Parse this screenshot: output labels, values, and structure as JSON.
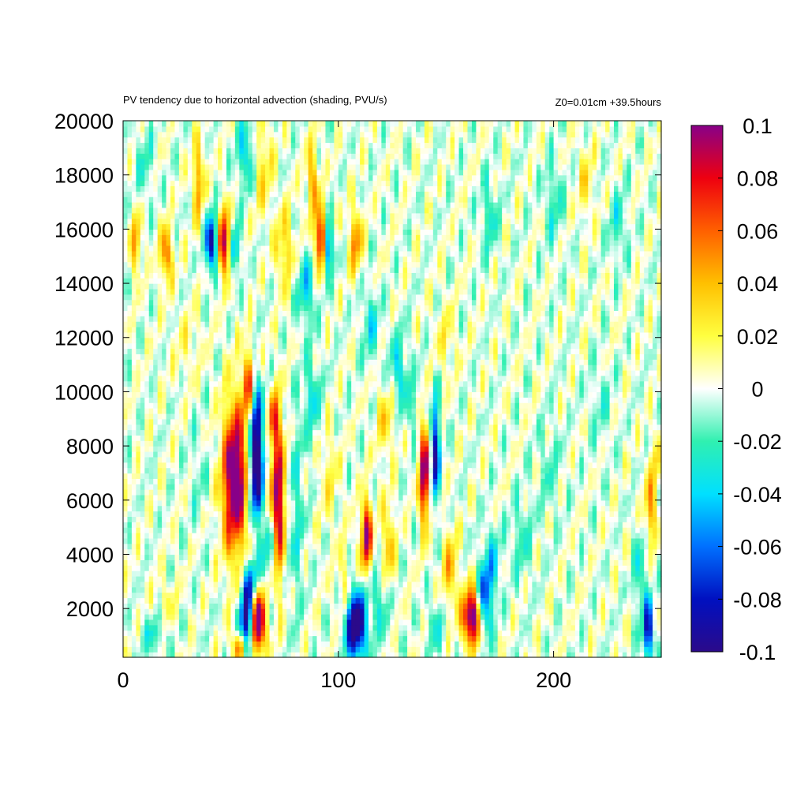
{
  "chart_data": {
    "type": "heatmap",
    "title": "PV tendency due to horizontal advection (shading, PVU/s)",
    "subtitle": "Z0=0.01cm   +39.5hours",
    "xlabel": "",
    "ylabel": "",
    "xlim": [
      0,
      250
    ],
    "ylim": [
      200,
      20000
    ],
    "x_ticks": [
      "0",
      "100",
      "200"
    ],
    "x_tick_values": [
      0,
      100,
      200
    ],
    "y_ticks": [
      "2000",
      "4000",
      "6000",
      "8000",
      "10000",
      "12000",
      "14000",
      "16000",
      "18000",
      "20000"
    ],
    "y_tick_values": [
      2000,
      4000,
      6000,
      8000,
      10000,
      12000,
      14000,
      16000,
      18000,
      20000
    ],
    "colorbar": {
      "range": [
        -0.1,
        0.1
      ],
      "ticks": [
        "0.1",
        "0.08",
        "0.06",
        "0.04",
        "0.02",
        "0",
        "-0.02",
        "-0.04",
        "-0.06",
        "-0.08",
        "-0.1"
      ],
      "tick_values": [
        0.1,
        0.08,
        0.06,
        0.04,
        0.02,
        0,
        -0.02,
        -0.04,
        -0.06,
        -0.08,
        -0.1
      ],
      "colors": [
        "#2b0a8a",
        "#0010c0",
        "#0070ff",
        "#00e0ff",
        "#30f0b0",
        "#ffffff",
        "#ffff40",
        "#ffc000",
        "#ff6000",
        "#ee0010",
        "#880088"
      ]
    },
    "features": [
      {
        "x": 52,
        "y": 6800,
        "sx": 4,
        "sy": 1900,
        "v": 0.12
      },
      {
        "x": 62,
        "y": 7200,
        "sx": 2.2,
        "sy": 1300,
        "v": -0.12
      },
      {
        "x": 58,
        "y": 10300,
        "sx": 1.6,
        "sy": 900,
        "v": 0.07
      },
      {
        "x": 62,
        "y": 9200,
        "sx": 2.5,
        "sy": 1000,
        "v": -0.04
      },
      {
        "x": 72,
        "y": 6000,
        "sx": 2.4,
        "sy": 2000,
        "v": 0.1
      },
      {
        "x": 70,
        "y": 9000,
        "sx": 1.8,
        "sy": 700,
        "v": 0.05
      },
      {
        "x": 68,
        "y": 4200,
        "sx": 2.5,
        "sy": 900,
        "v": -0.04
      },
      {
        "x": 63,
        "y": 1500,
        "sx": 2.2,
        "sy": 800,
        "v": 0.12
      },
      {
        "x": 57,
        "y": 1700,
        "sx": 2,
        "sy": 1000,
        "v": -0.1
      },
      {
        "x": 60,
        "y": 3100,
        "sx": 2,
        "sy": 600,
        "v": -0.05
      },
      {
        "x": 54,
        "y": 600,
        "sx": 2,
        "sy": 400,
        "v": 0.07
      },
      {
        "x": 80,
        "y": 5500,
        "sx": 3,
        "sy": 2500,
        "v": -0.025
      },
      {
        "x": 108,
        "y": 1400,
        "sx": 3.5,
        "sy": 900,
        "v": -0.12
      },
      {
        "x": 103,
        "y": 2700,
        "sx": 2.5,
        "sy": 1200,
        "v": 0.025
      },
      {
        "x": 113,
        "y": 4700,
        "sx": 1.8,
        "sy": 900,
        "v": 0.1
      },
      {
        "x": 123,
        "y": 4200,
        "sx": 2.2,
        "sy": 1200,
        "v": 0.04
      },
      {
        "x": 120,
        "y": 2300,
        "sx": 3,
        "sy": 1000,
        "v": -0.03
      },
      {
        "x": 140,
        "y": 7000,
        "sx": 1.6,
        "sy": 1300,
        "v": 0.11
      },
      {
        "x": 145,
        "y": 7800,
        "sx": 1.4,
        "sy": 1300,
        "v": -0.09
      },
      {
        "x": 135,
        "y": 9500,
        "sx": 2.5,
        "sy": 800,
        "v": -0.02
      },
      {
        "x": 162,
        "y": 1700,
        "sx": 3,
        "sy": 700,
        "v": 0.12
      },
      {
        "x": 168,
        "y": 2400,
        "sx": 2.5,
        "sy": 1000,
        "v": -0.07
      },
      {
        "x": 152,
        "y": 3500,
        "sx": 2.5,
        "sy": 1000,
        "v": 0.04
      },
      {
        "x": 172,
        "y": 3800,
        "sx": 2.5,
        "sy": 900,
        "v": -0.03
      },
      {
        "x": 145,
        "y": 1300,
        "sx": 3,
        "sy": 700,
        "v": -0.025
      },
      {
        "x": 245,
        "y": 5700,
        "sx": 2,
        "sy": 900,
        "v": 0.05
      },
      {
        "x": 244,
        "y": 1200,
        "sx": 1.6,
        "sy": 800,
        "v": -0.09
      },
      {
        "x": 240,
        "y": 3200,
        "sx": 2,
        "sy": 1200,
        "v": -0.03
      },
      {
        "x": 248,
        "y": 7500,
        "sx": 1.8,
        "sy": 800,
        "v": 0.025
      },
      {
        "x": 41,
        "y": 15500,
        "sx": 1.8,
        "sy": 700,
        "v": -0.1
      },
      {
        "x": 47,
        "y": 15500,
        "sx": 2.2,
        "sy": 800,
        "v": 0.09
      },
      {
        "x": 52,
        "y": 15300,
        "sx": 1.5,
        "sy": 600,
        "v": -0.06
      },
      {
        "x": 92,
        "y": 15600,
        "sx": 1.8,
        "sy": 800,
        "v": 0.1
      },
      {
        "x": 95,
        "y": 15300,
        "sx": 1.4,
        "sy": 700,
        "v": -0.09
      },
      {
        "x": 108,
        "y": 15600,
        "sx": 2,
        "sy": 800,
        "v": 0.055
      },
      {
        "x": 20,
        "y": 15100,
        "sx": 2,
        "sy": 700,
        "v": 0.06
      },
      {
        "x": 6,
        "y": 15500,
        "sx": 1.5,
        "sy": 800,
        "v": 0.05
      },
      {
        "x": 35,
        "y": 17800,
        "sx": 1.8,
        "sy": 1000,
        "v": 0.05
      },
      {
        "x": 88,
        "y": 17800,
        "sx": 2,
        "sy": 1000,
        "v": 0.045
      },
      {
        "x": 57,
        "y": 18800,
        "sx": 3,
        "sy": 900,
        "v": -0.04
      },
      {
        "x": 65,
        "y": 18300,
        "sx": 3,
        "sy": 1200,
        "v": 0.03
      },
      {
        "x": 75,
        "y": 15300,
        "sx": 3,
        "sy": 1000,
        "v": 0.035
      },
      {
        "x": 85,
        "y": 13800,
        "sx": 3,
        "sy": 900,
        "v": -0.04
      },
      {
        "x": 115,
        "y": 12500,
        "sx": 3,
        "sy": 900,
        "v": -0.03
      },
      {
        "x": 128,
        "y": 10800,
        "sx": 3,
        "sy": 1000,
        "v": -0.035
      },
      {
        "x": 88,
        "y": 9800,
        "sx": 3,
        "sy": 1100,
        "v": -0.03
      },
      {
        "x": 122,
        "y": 9000,
        "sx": 3,
        "sy": 900,
        "v": 0.03
      },
      {
        "x": 150,
        "y": 12000,
        "sx": 3,
        "sy": 900,
        "v": 0.02
      },
      {
        "x": 170,
        "y": 16500,
        "sx": 3,
        "sy": 1000,
        "v": -0.025
      },
      {
        "x": 200,
        "y": 17000,
        "sx": 3,
        "sy": 1100,
        "v": -0.025
      },
      {
        "x": 215,
        "y": 17800,
        "sx": 2.5,
        "sy": 900,
        "v": 0.025
      },
      {
        "x": 230,
        "y": 16200,
        "sx": 3,
        "sy": 900,
        "v": -0.025
      },
      {
        "x": 10,
        "y": 18500,
        "sx": 3,
        "sy": 1000,
        "v": -0.02
      },
      {
        "x": 14,
        "y": 1000,
        "sx": 4,
        "sy": 500,
        "v": -0.025
      },
      {
        "x": 20,
        "y": 2300,
        "sx": 4,
        "sy": 500,
        "v": 0.015
      },
      {
        "x": 198,
        "y": 7200,
        "sx": 4,
        "sy": 1200,
        "v": -0.015
      },
      {
        "x": 185,
        "y": 4600,
        "sx": 4,
        "sy": 1100,
        "v": -0.02
      },
      {
        "x": 222,
        "y": 9500,
        "sx": 4,
        "sy": 1100,
        "v": -0.015
      },
      {
        "x": 96,
        "y": 7000,
        "sx": 3,
        "sy": 1200,
        "v": 0.02
      },
      {
        "x": 35,
        "y": 7000,
        "sx": 3,
        "sy": 1500,
        "v": -0.012
      },
      {
        "x": 30,
        "y": 11800,
        "sx": 5,
        "sy": 1000,
        "v": 0.012
      }
    ]
  }
}
